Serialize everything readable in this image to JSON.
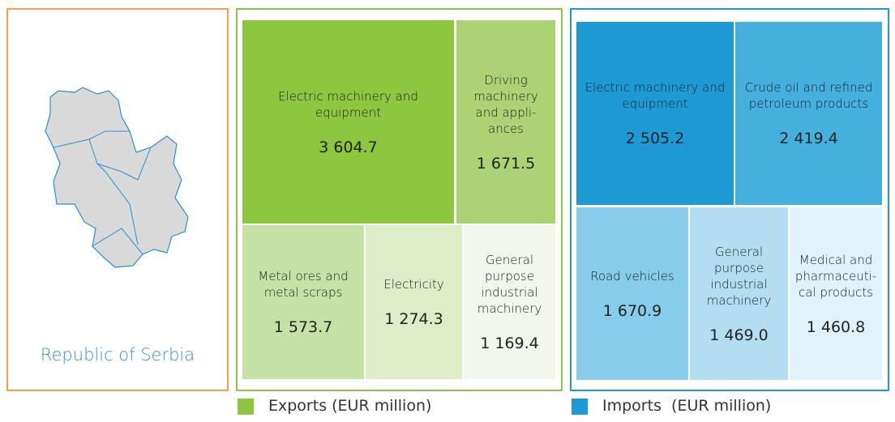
{
  "map": {
    "label": "Republic of Serbia"
  },
  "chart_data": [
    {
      "type": "treemap",
      "legend": "Exports (EUR million)",
      "color": "#8dc63f",
      "border": "#8dc63f",
      "categories": [
        "Electric machinery and equipment",
        "Driving machinery and appli-ances",
        "Metal ores and metal scraps",
        "Electricity",
        "General purpose industrial machinery"
      ],
      "values": [
        3604.7,
        1671.5,
        1573.7,
        1274.3,
        1169.4
      ],
      "value_labels": [
        "3 604.7",
        "1 671.5",
        "1 573.7",
        "1 274.3",
        "1 169.4"
      ],
      "colors": [
        "#8dc63f",
        "#acd373",
        "#c6e1a6",
        "#dcedc7",
        "#f1f7ea"
      ]
    },
    {
      "type": "treemap",
      "legend": "Imports  (EUR million)",
      "color": "#1d9ad6",
      "border": "#1d9ad6",
      "categories": [
        "Electric machinery and equipment",
        "Crude oil and refined petroleum products",
        "Road vehicles",
        "General purpose industrial machinery",
        "Medical and pharmaceuti-cal products"
      ],
      "values": [
        2505.2,
        2419.4,
        1670.9,
        1469.0,
        1460.8
      ],
      "value_labels": [
        "2 505.2",
        "2 419.4",
        "1 670.9",
        "1 469.0",
        "1 460.8"
      ],
      "colors": [
        "#1d9ad6",
        "#45b0de",
        "#87cdeb",
        "#b3def2",
        "#e2f2fa"
      ]
    }
  ]
}
